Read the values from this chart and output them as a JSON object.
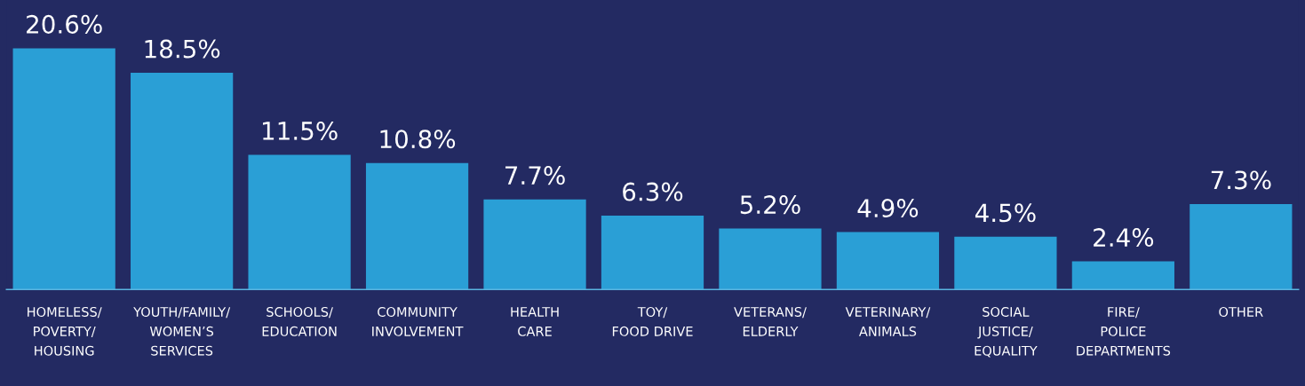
{
  "chart_data": {
    "type": "bar",
    "categories": [
      "HOMELESS/\nPOVERTY/\nHOUSING",
      "YOUTH/FAMILY/\nWOMEN’S\nSERVICES",
      "SCHOOLS/\nEDUCATION",
      "COMMUNITY\nINVOLVEMENT",
      "HEALTH\nCARE",
      "TOY/\nFOOD DRIVE",
      "VETERANS/\nELDERLY",
      "VETERINARY/\nANIMALS",
      "SOCIAL\nJUSTICE/\nEQUALITY",
      "FIRE/\nPOLICE\nDEPARTMENTS",
      "OTHER"
    ],
    "values": [
      20.6,
      18.5,
      11.5,
      10.8,
      7.7,
      6.3,
      5.2,
      4.9,
      4.5,
      2.4,
      7.3
    ],
    "value_labels": [
      "20.6%",
      "18.5%",
      "11.5%",
      "10.8%",
      "7.7%",
      "6.3%",
      "5.2%",
      "4.9%",
      "4.5%",
      "2.4%",
      "7.3%"
    ],
    "color": "#2a9fd6"
  }
}
